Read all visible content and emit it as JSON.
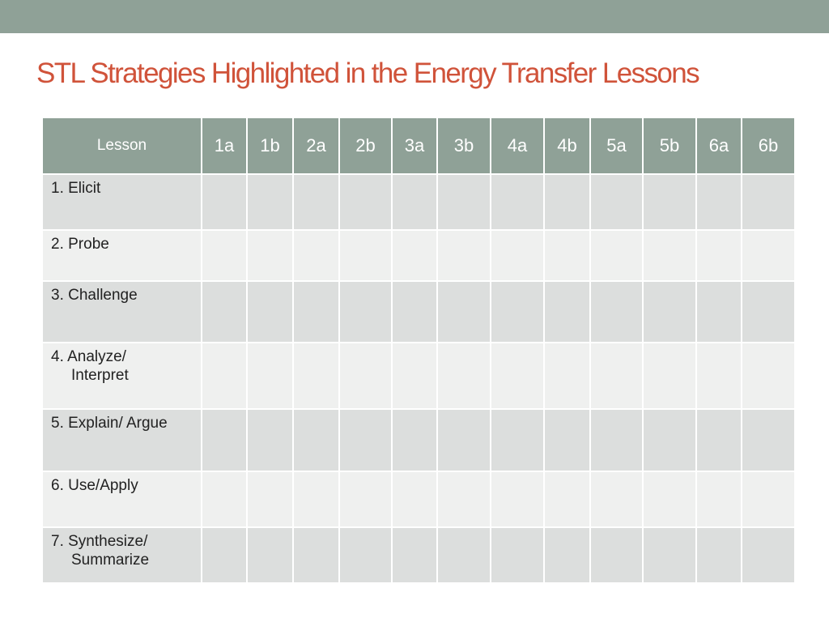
{
  "title": "STL Strategies Highlighted in the Energy Transfer Lessons",
  "table": {
    "header_lesson": "Lesson",
    "columns": [
      "1a",
      "1b",
      "2a",
      "2b",
      "3a",
      "3b",
      "4a",
      "4b",
      "5a",
      "5b",
      "6a",
      "6b"
    ],
    "rows": [
      {
        "line1": "1. Elicit",
        "line2": ""
      },
      {
        "line1": "2. Probe",
        "line2": ""
      },
      {
        "line1": "3. Challenge",
        "line2": ""
      },
      {
        "line1": "4. Analyze/",
        "line2": "Interpret"
      },
      {
        "line1": "5. Explain/ Argue",
        "line2": ""
      },
      {
        "line1": "6. Use/Apply",
        "line2": ""
      },
      {
        "line1": "7. Synthesize/",
        "line2": "Summarize"
      }
    ]
  },
  "colors": {
    "header_bar": "#8fa197",
    "title": "#d0533a",
    "row_dark": "#dcdedd",
    "row_light": "#eff0ef"
  }
}
